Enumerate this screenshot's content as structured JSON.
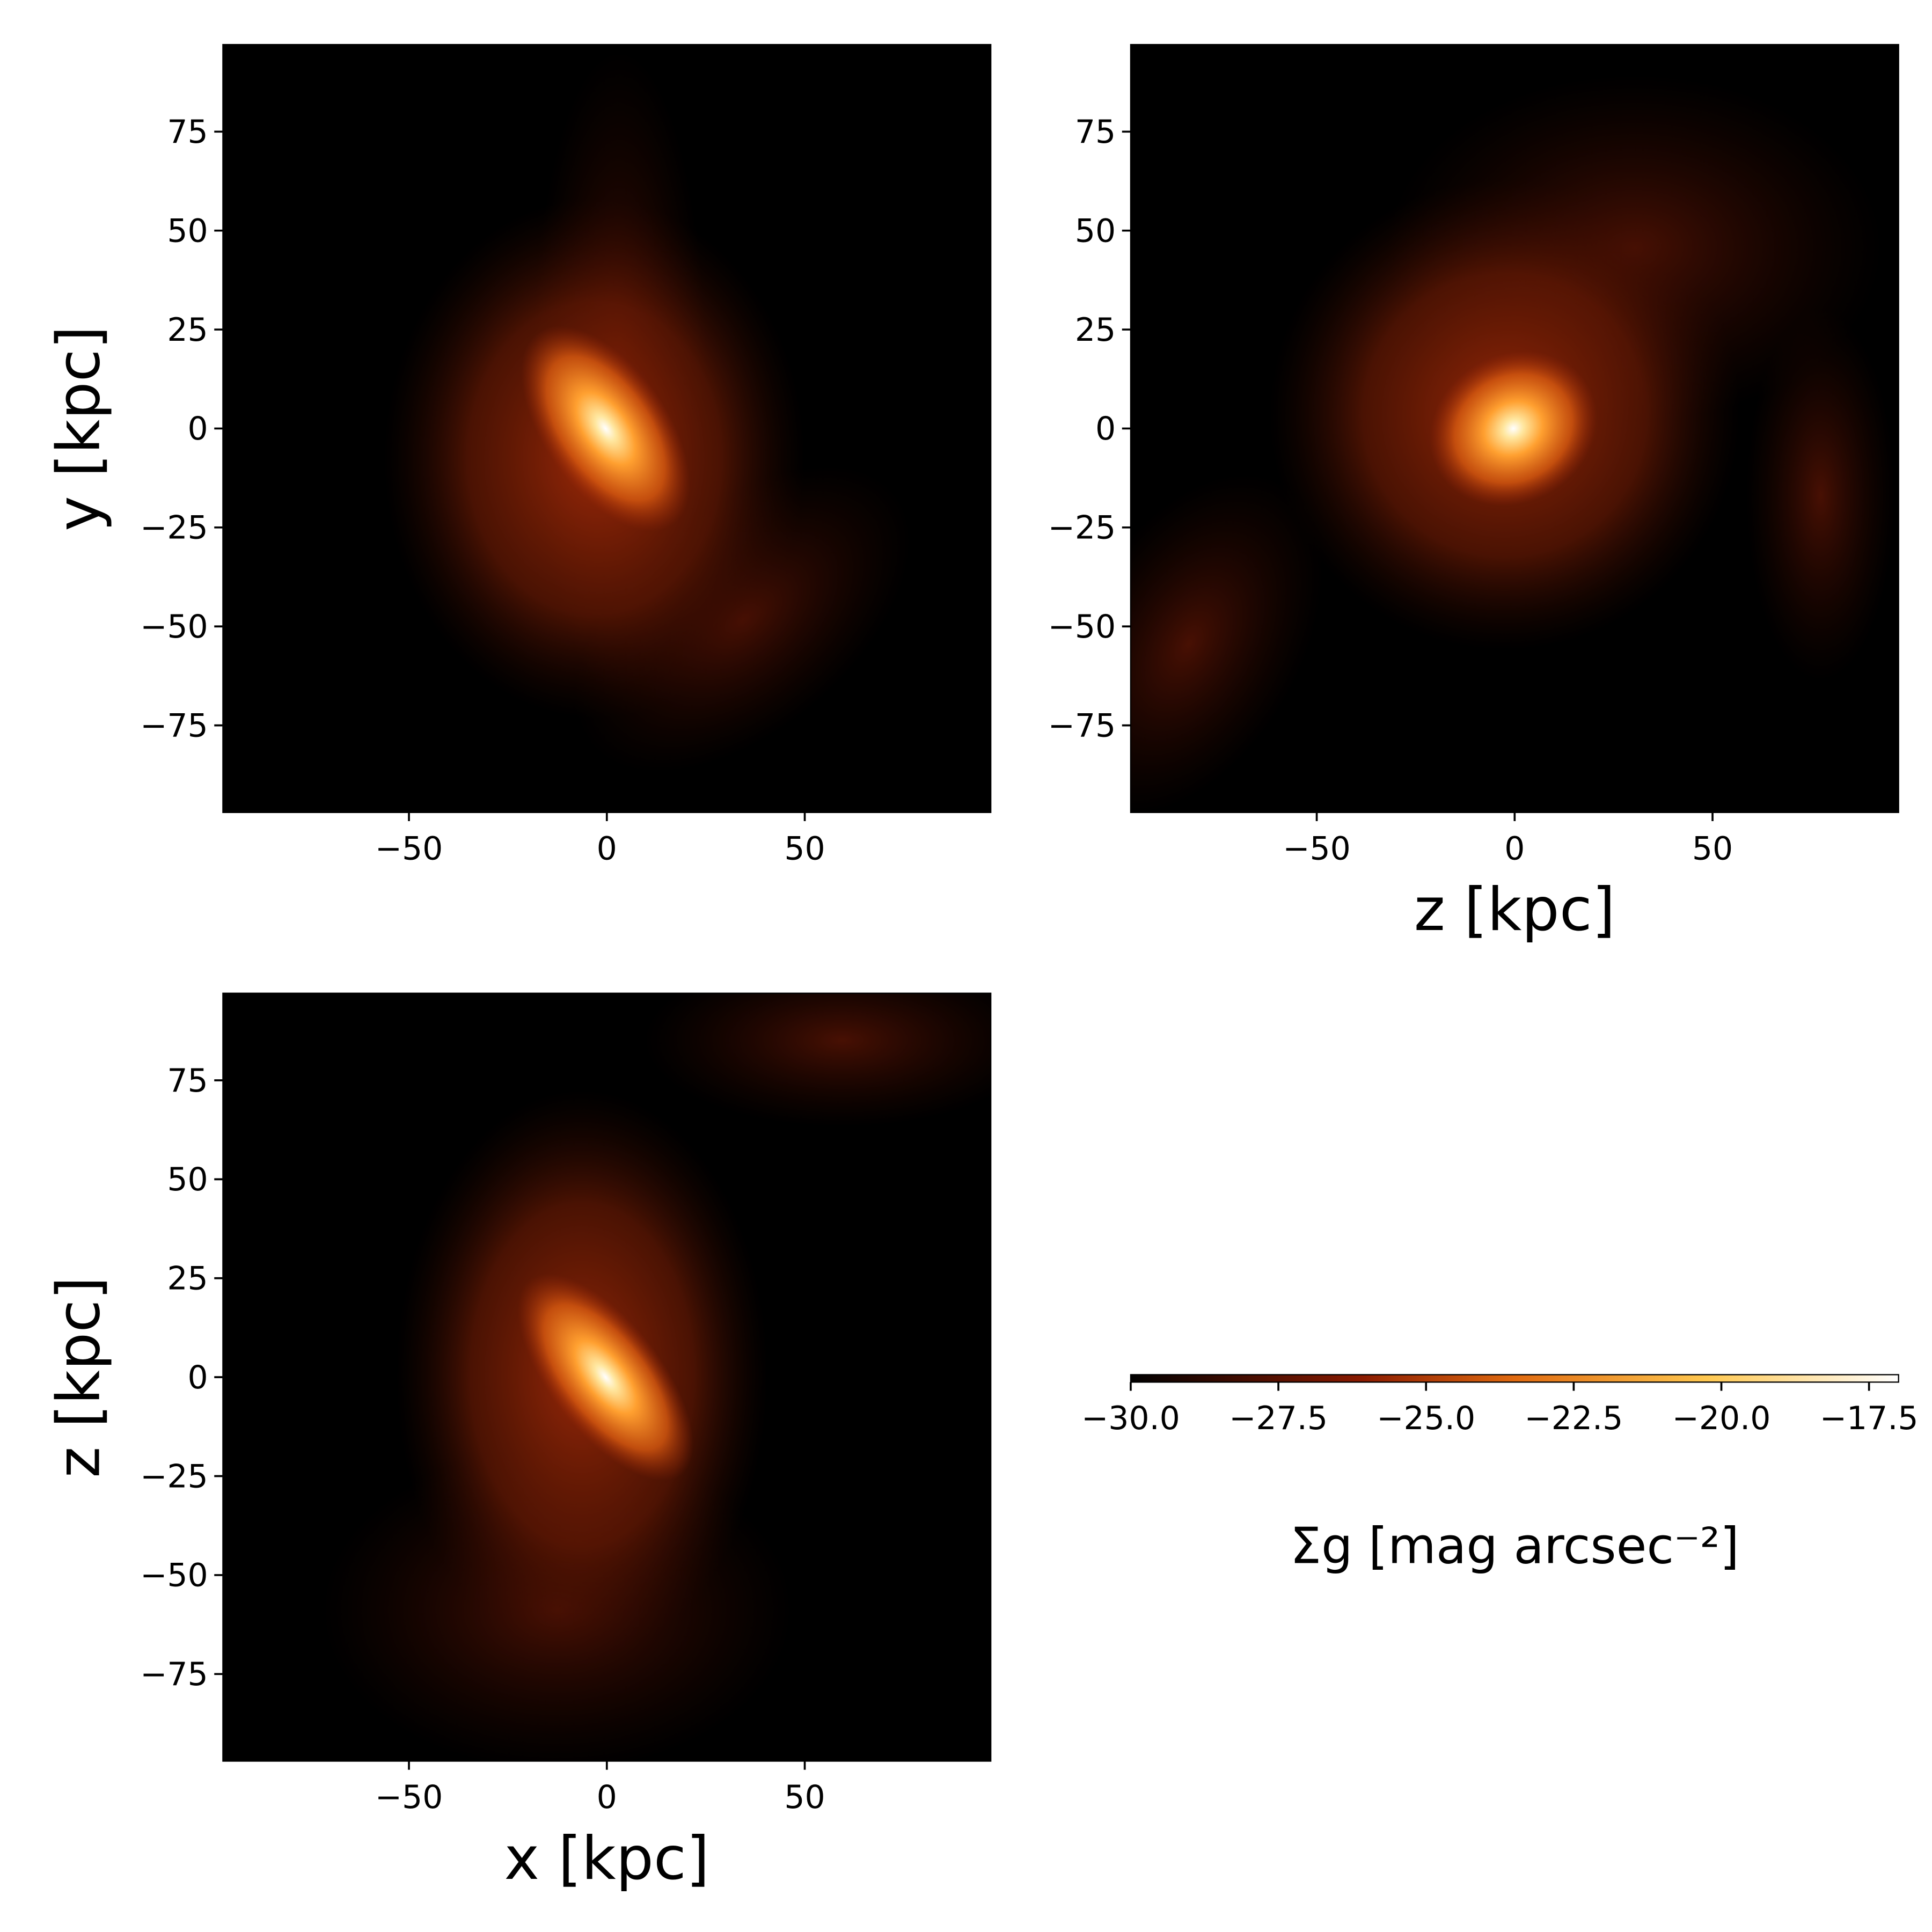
{
  "chart_data": [
    {
      "type": "image",
      "ylabel": "y [kpc]",
      "xlim": [
        -97,
        97
      ],
      "ylim": [
        -97,
        97
      ],
      "xticks": [
        {
          "value": -50,
          "label": "−50"
        },
        0,
        50
      ],
      "yticks": [
        {
          "value": -75,
          "label": "−75"
        },
        {
          "value": -50,
          "label": "−50"
        },
        {
          "value": -25,
          "label": "−25"
        },
        0,
        25,
        50,
        75
      ]
    },
    {
      "type": "image",
      "xlabel": "z [kpc]",
      "xlim": [
        -97,
        97
      ],
      "ylim": [
        -97,
        97
      ],
      "xticks": [
        {
          "value": -50,
          "label": "−50"
        },
        0,
        50
      ],
      "yticks": [
        {
          "value": -75,
          "label": "−75"
        },
        {
          "value": -50,
          "label": "−50"
        },
        {
          "value": -25,
          "label": "−25"
        },
        0,
        25,
        50,
        75
      ]
    },
    {
      "type": "image",
      "xlabel": "x [kpc]",
      "ylabel": "z [kpc]",
      "xlim": [
        -97,
        97
      ],
      "ylim": [
        -97,
        97
      ],
      "xticks": [
        {
          "value": -50,
          "label": "−50"
        },
        0,
        50
      ],
      "yticks": [
        {
          "value": -75,
          "label": "−75"
        },
        {
          "value": -50,
          "label": "−50"
        },
        {
          "value": -25,
          "label": "−25"
        },
        0,
        25,
        50,
        75
      ]
    },
    {
      "type": "colorbar",
      "label": "Σg [mag arcsec⁻²]",
      "xlim": [
        -30,
        -17
      ],
      "xticks": [
        {
          "value": -30,
          "label": "−30.0"
        },
        {
          "value": -27.5,
          "label": "−27.5"
        },
        {
          "value": -25,
          "label": "−25.0"
        },
        {
          "value": -22.5,
          "label": "−22.5"
        },
        {
          "value": -20,
          "label": "−20.0"
        },
        {
          "value": -17.5,
          "label": "−17.5"
        }
      ]
    }
  ]
}
